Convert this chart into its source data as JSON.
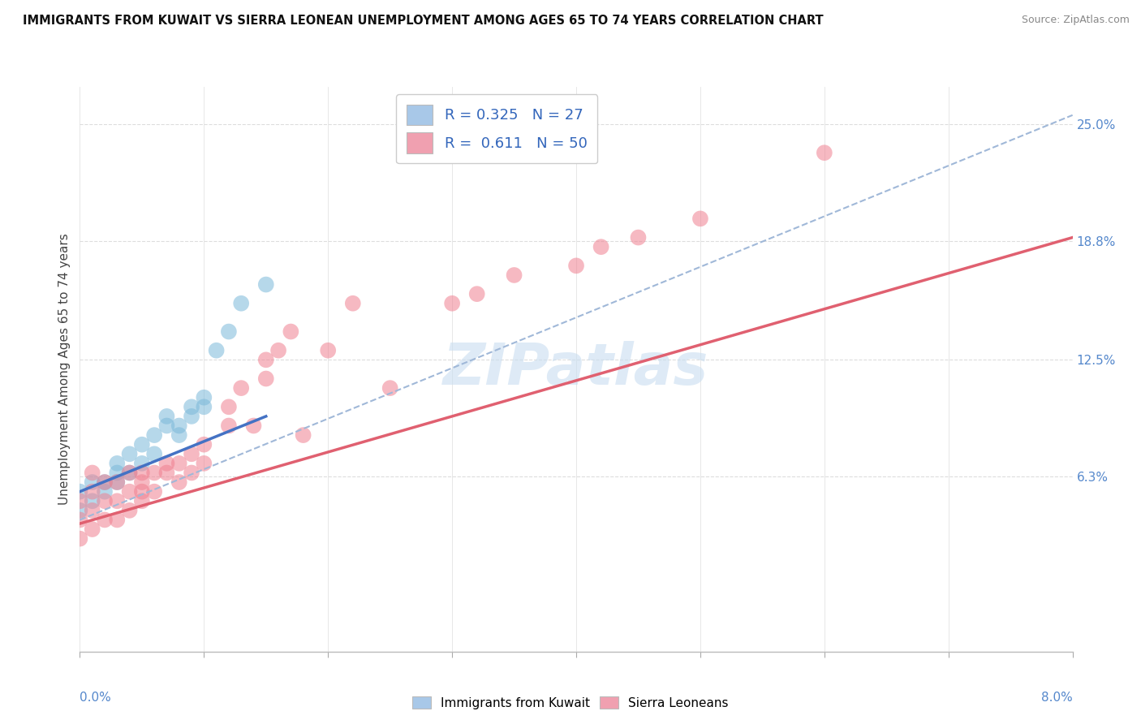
{
  "title": "IMMIGRANTS FROM KUWAIT VS SIERRA LEONEAN UNEMPLOYMENT AMONG AGES 65 TO 74 YEARS CORRELATION CHART",
  "source": "Source: ZipAtlas.com",
  "ylabel_label": "Unemployment Among Ages 65 to 74 years",
  "y_ticks": [
    0.063,
    0.125,
    0.188,
    0.25
  ],
  "y_tick_labels": [
    "6.3%",
    "12.5%",
    "18.8%",
    "25.0%"
  ],
  "x_range": [
    0.0,
    0.08
  ],
  "y_range": [
    -0.03,
    0.27
  ],
  "legend_r1": "R = 0.325",
  "legend_n1": "N = 27",
  "legend_r2": "R =  0.611",
  "legend_n2": "N = 50",
  "kuwait_scatter_x": [
    0.0,
    0.0,
    0.001,
    0.001,
    0.002,
    0.002,
    0.003,
    0.003,
    0.003,
    0.004,
    0.004,
    0.005,
    0.005,
    0.006,
    0.006,
    0.007,
    0.007,
    0.008,
    0.008,
    0.009,
    0.009,
    0.01,
    0.01,
    0.011,
    0.012,
    0.013,
    0.015
  ],
  "kuwait_scatter_y": [
    0.055,
    0.045,
    0.06,
    0.05,
    0.055,
    0.06,
    0.06,
    0.065,
    0.07,
    0.065,
    0.075,
    0.07,
    0.08,
    0.075,
    0.085,
    0.09,
    0.095,
    0.085,
    0.09,
    0.1,
    0.095,
    0.1,
    0.105,
    0.13,
    0.14,
    0.155,
    0.165
  ],
  "sierra_scatter_x": [
    0.0,
    0.0,
    0.0,
    0.001,
    0.001,
    0.001,
    0.001,
    0.002,
    0.002,
    0.002,
    0.003,
    0.003,
    0.003,
    0.004,
    0.004,
    0.004,
    0.005,
    0.005,
    0.005,
    0.005,
    0.006,
    0.006,
    0.007,
    0.007,
    0.008,
    0.008,
    0.009,
    0.009,
    0.01,
    0.01,
    0.012,
    0.012,
    0.013,
    0.014,
    0.015,
    0.015,
    0.016,
    0.017,
    0.018,
    0.02,
    0.022,
    0.025,
    0.03,
    0.032,
    0.035,
    0.04,
    0.042,
    0.045,
    0.05,
    0.06
  ],
  "sierra_scatter_y": [
    0.03,
    0.04,
    0.05,
    0.035,
    0.045,
    0.055,
    0.065,
    0.04,
    0.05,
    0.06,
    0.04,
    0.05,
    0.06,
    0.045,
    0.055,
    0.065,
    0.05,
    0.055,
    0.06,
    0.065,
    0.055,
    0.065,
    0.065,
    0.07,
    0.06,
    0.07,
    0.065,
    0.075,
    0.07,
    0.08,
    0.09,
    0.1,
    0.11,
    0.09,
    0.115,
    0.125,
    0.13,
    0.14,
    0.085,
    0.13,
    0.155,
    0.11,
    0.155,
    0.16,
    0.17,
    0.175,
    0.185,
    0.19,
    0.2,
    0.235
  ],
  "kuwait_line_x": [
    0.0,
    0.015
  ],
  "kuwait_line_y": [
    0.055,
    0.095
  ],
  "kuwait_dashed_line_x": [
    0.0,
    0.08
  ],
  "kuwait_dashed_line_y": [
    0.04,
    0.255
  ],
  "sierra_line_x": [
    0.0,
    0.08
  ],
  "sierra_line_y": [
    0.038,
    0.19
  ],
  "kuwait_dot_color": "#7ab8d9",
  "sierra_dot_color": "#f08090",
  "kuwait_line_color": "#4472c4",
  "kuwait_dashed_color": "#a0b8d8",
  "sierra_line_color": "#e06070",
  "watermark_text": "ZIPatlas",
  "watermark_color": "#c8ddf0",
  "background_color": "#ffffff",
  "grid_color": "#dddddd",
  "legend_box_color1": "#a8c8e8",
  "legend_box_color2": "#f0a0b0",
  "bottom_legend_label1": "Immigrants from Kuwait",
  "bottom_legend_label2": "Sierra Leoneans"
}
